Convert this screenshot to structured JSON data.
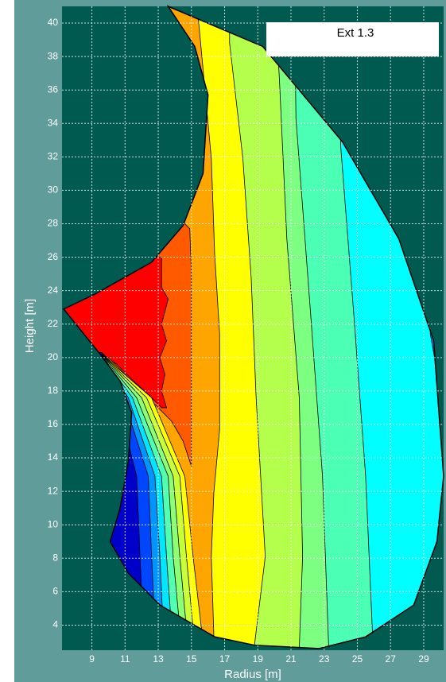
{
  "chart_data": {
    "type": "contour",
    "legend": "Ext 1.3",
    "xlabel": "Radius [m]",
    "ylabel": "Height [m]",
    "xlim": [
      7.2,
      30.2
    ],
    "ylim": [
      2.5,
      41
    ],
    "xticks": [
      9,
      11,
      13,
      15,
      17,
      19,
      21,
      23,
      25,
      27,
      29
    ],
    "yticks": [
      4,
      6,
      8,
      10,
      12,
      14,
      16,
      18,
      20,
      22,
      24,
      26,
      28,
      30,
      32,
      34,
      36,
      38,
      40
    ],
    "grid": true,
    "background": "#005a50",
    "boundary": {
      "x": [
        13.6,
        19.3,
        24.1,
        27.5,
        29.6,
        30.2,
        29.8,
        28.4,
        25.5,
        22.7,
        18.8,
        16.4,
        13.1,
        11.2,
        10.1,
        10.7,
        11.2,
        11.4,
        10.7,
        9.5,
        7.3,
        9.2,
        12.6,
        14.5,
        15.7,
        16,
        15.2
      ],
      "y": [
        41,
        38.6,
        32.9,
        27.1,
        21,
        12.9,
        9,
        5.2,
        3.3,
        2.6,
        2.8,
        3.3,
        5.2,
        7.1,
        9,
        11,
        13.8,
        16.7,
        18.6,
        20.2,
        22.9,
        23.8,
        25.7,
        27.9,
        31,
        35.7,
        38.6
      ]
    },
    "regions": [
      {
        "color": "#ff0000",
        "x": [
          5,
          31,
          31,
          5
        ],
        "y": [
          2,
          2,
          42,
          42
        ]
      },
      {
        "color": "#ff5a00",
        "x": [
          5,
          5,
          13.2,
          13.2,
          13.6,
          13.2,
          13.5,
          13.1,
          13.4,
          13.2,
          13.5,
          13.2,
          12.5,
          11.5,
          10.5,
          9.5,
          5,
          5,
          31,
          31
        ],
        "y": [
          42,
          26,
          26,
          24.2,
          23.5,
          22,
          21,
          20,
          19,
          18,
          17,
          17,
          17.7,
          18.6,
          19.6,
          20.3,
          20.3,
          2,
          2,
          42
        ]
      },
      {
        "color": "#ffa500",
        "x": [
          12,
          12,
          14.6,
          14.9,
          15,
          15,
          15,
          14.5,
          13.8,
          13,
          12,
          11,
          10,
          5,
          5,
          31,
          31
        ],
        "y": [
          42,
          29,
          28,
          27.7,
          25,
          20,
          13.5,
          15,
          16.2,
          17,
          18,
          19,
          20,
          20,
          2,
          2,
          42
        ]
      },
      {
        "color": "#ffff00",
        "x": [
          15.35,
          15.35,
          16.2,
          16.4,
          16.7,
          16.7,
          16.35,
          16.2,
          16.35,
          16.4,
          31,
          31
        ],
        "y": [
          42,
          41,
          31.9,
          26.2,
          21.4,
          15.7,
          11.9,
          8.1,
          3.4,
          2,
          2,
          42
        ]
      },
      {
        "color": "#b4ff4b",
        "x": [
          17.3,
          17.3,
          18.1,
          18.6,
          18.9,
          19.45,
          18.8,
          18.8,
          31,
          31
        ],
        "y": [
          42,
          38.8,
          31.9,
          24.8,
          17.6,
          8.1,
          2.8,
          2,
          2,
          42
        ]
      },
      {
        "color": "#7dff82",
        "x": [
          20,
          20.3,
          20.75,
          21.5,
          21.7,
          21.5,
          21.5,
          31,
          31
        ],
        "y": [
          42,
          36.7,
          27.1,
          17.6,
          8.1,
          2.6,
          2,
          2,
          42
        ]
      },
      {
        "color": "#4bffb4",
        "x": [
          21.2,
          21.3,
          22.2,
          22.9,
          23.25,
          23.3,
          31,
          31
        ],
        "y": [
          42,
          34.3,
          22.4,
          12.9,
          3.3,
          2,
          2,
          42
        ]
      },
      {
        "color": "#00ffff",
        "x": [
          23.9,
          24,
          24.8,
          25.5,
          25.9,
          26,
          31,
          31
        ],
        "y": [
          42,
          32.6,
          22.4,
          12.9,
          3.8,
          2,
          2,
          42
        ]
      },
      {
        "color": "#0096ff",
        "x": [
          29.2,
          29.4,
          29.9,
          30.3,
          31,
          31
        ],
        "y": [
          42,
          21.4,
          18.6,
          12.9,
          12.9,
          42
        ]
      },
      {
        "color": "#ffff00",
        "x": [
          9.6,
          10.5,
          12.6,
          14.6,
          15.1,
          15.6,
          15.6,
          5,
          5
        ],
        "y": [
          20.3,
          19.4,
          17.6,
          12.9,
          8.1,
          3.8,
          2,
          2,
          20.3
        ]
      },
      {
        "color": "#c8ff37",
        "x": [
          9.6,
          10.4,
          12.3,
          14.3,
          14.7,
          15.1,
          15.1,
          5,
          5
        ],
        "y": [
          20.3,
          19.4,
          17.6,
          12.9,
          8.1,
          3.8,
          2,
          2,
          20.3
        ]
      },
      {
        "color": "#8cff73",
        "x": [
          9.6,
          10.3,
          12,
          13.9,
          14.3,
          14.7,
          14.7,
          5,
          5
        ],
        "y": [
          20.3,
          19.4,
          17.6,
          12.9,
          8.1,
          3.8,
          2,
          2,
          20.3
        ]
      },
      {
        "color": "#50ffaf",
        "x": [
          9.6,
          10.2,
          11.7,
          13.6,
          13.9,
          14.3,
          14.3,
          5,
          5
        ],
        "y": [
          20.3,
          19.4,
          17.6,
          12.9,
          8.1,
          3.8,
          2,
          2,
          20.3
        ]
      },
      {
        "color": "#00e6ff",
        "x": [
          9.6,
          10.1,
          11.45,
          13.2,
          13.5,
          13.8,
          13.8,
          5,
          5
        ],
        "y": [
          20.3,
          19.4,
          17.6,
          12.9,
          8.1,
          3.8,
          2,
          2,
          20.3
        ]
      },
      {
        "color": "#0096ff",
        "x": [
          9.6,
          10,
          11.2,
          12.8,
          13.1,
          13.3,
          13.3,
          5,
          5
        ],
        "y": [
          20.3,
          19.4,
          17.6,
          12.9,
          8.1,
          3.8,
          2,
          2,
          20.3
        ]
      },
      {
        "color": "#0046ff",
        "x": [
          9.6,
          9.9,
          10.9,
          12.4,
          12.6,
          12.8,
          12.8,
          5,
          5
        ],
        "y": [
          20.3,
          19.4,
          17.6,
          12.9,
          8.1,
          3.8,
          2,
          2,
          20.3
        ]
      },
      {
        "color": "#0000c8",
        "x": [
          9.6,
          9.8,
          10.5,
          11.7,
          11.9,
          12.1,
          12.1,
          5,
          5
        ],
        "y": [
          20.3,
          19.4,
          17.6,
          12.9,
          8.1,
          3.8,
          2,
          2,
          20.3
        ]
      }
    ]
  }
}
